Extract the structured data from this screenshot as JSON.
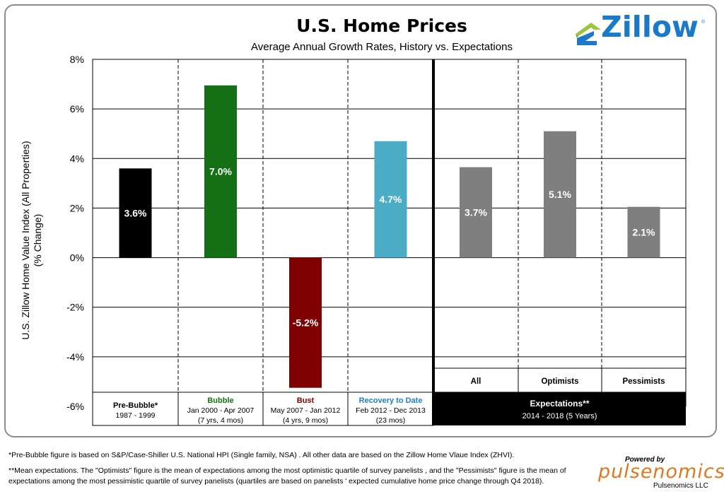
{
  "header": {
    "title": "U.S. Home Prices",
    "subtitle": "Average Annual Growth Rates, History vs. Expectations",
    "logo_text": "Zillow",
    "logo_mark": "®"
  },
  "chart_data": {
    "type": "bar",
    "title": "U.S. Home Prices",
    "subtitle": "Average Annual Growth Rates, History vs. Expectations",
    "ylabel": [
      "U.S. Zillow Home Value  Index (All Properties)",
      "(% Change)"
    ],
    "ylim": [
      -6,
      8
    ],
    "yticks": [
      -6,
      -4,
      -2,
      0,
      2,
      4,
      6,
      8
    ],
    "ytick_labels": [
      "-6%",
      "-4%",
      "-2%",
      "0%",
      "2%",
      "4%",
      "6%",
      "8%"
    ],
    "grid": true,
    "categories": [
      "Pre-Bubble*",
      "Bubble",
      "Bust",
      "Recovery to Date",
      "All",
      "Optimists",
      "Pessimists"
    ],
    "values": [
      3.6,
      6.95,
      -5.25,
      4.7,
      3.65,
      5.1,
      2.05
    ],
    "data_labels": [
      "3.6%",
      "7.0%",
      "-5.2%",
      "4.7%",
      "3.7%",
      "5.1%",
      "2.1%"
    ],
    "colors": [
      "#000000",
      "#157015",
      "#7f0000",
      "#4bacc6",
      "#7f7f7f",
      "#7f7f7f",
      "#7f7f7f"
    ],
    "period_boxes": [
      {
        "name": "Pre-Bubble*",
        "line1": "1987 - 1999",
        "line2": "",
        "name_color": "#000000"
      },
      {
        "name": "Bubble",
        "line1": "Jan 2000 - Apr 2007",
        "line2": "(7 yrs, 4 mos)",
        "name_color": "#157015"
      },
      {
        "name": "Bust",
        "line1": "May 2007 -  Jan 2012",
        "line2": "(4 yrs, 9 mos)",
        "name_color": "#7f0000"
      },
      {
        "name": "Recovery to Date",
        "line1": "Feb 2012 - Dec 2013",
        "line2": "(23 mos)",
        "name_color": "#1f7ec4"
      }
    ],
    "expectation_boxes": [
      "All",
      "Optimists",
      "Pessimists"
    ],
    "expectations_footer": {
      "name": "Expectations**",
      "line1": "2014 - 2018  (5 Years)"
    }
  },
  "footnotes": [
    "*Pre-Bubble figure is based on S&P/Case-Shiller U.S. National HPI (Single family, NSA) . All other data are based on the Zillow Home Vlaue Index (ZHVI).",
    "**Mean expectations. The \"Optimists\" figure is the mean of expectations  among the most optimistic quartile of survey panelists , and the \"Pessimists\" figure is the mean of",
    "expectations  among the most pessimistic quartile of survey panelists (quartiles  are based on panelists ' expected cumulative  home price change through Q4 2018)."
  ],
  "pulsenomics": {
    "powered_by": "Powered by",
    "name": "pulsenomics",
    "llc": "Pulsenomics LLC"
  }
}
